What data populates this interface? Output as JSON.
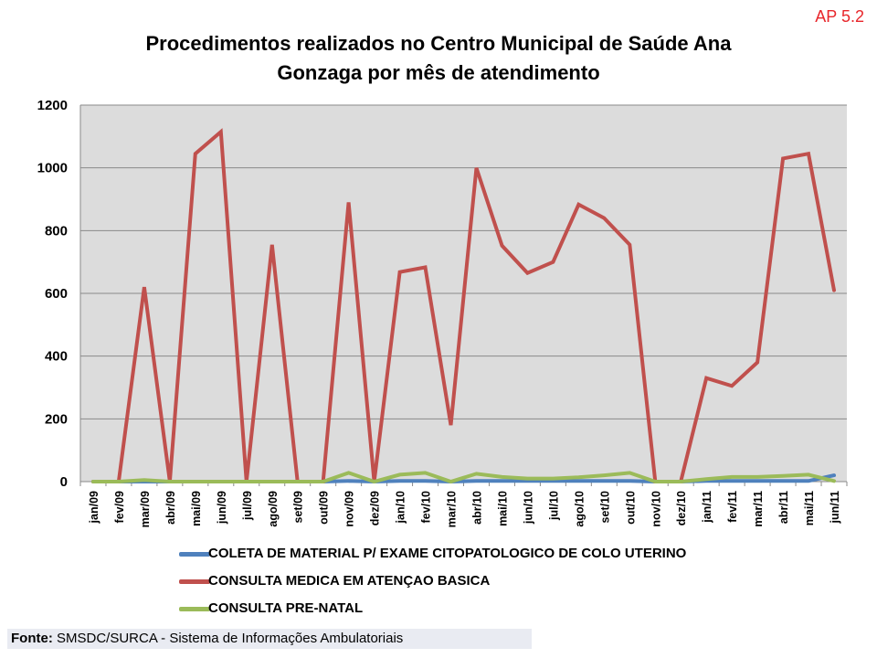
{
  "corner_tag": "AP 5.2",
  "source": {
    "label": "Fonte:",
    "text": "SMSDC/SURCA - Sistema de Informações Ambulatoriais"
  },
  "chart_data": {
    "type": "line",
    "title": "Procedimentos realizados no Centro Municipal de Saúde Ana Gonzaga por mês de atendimento",
    "title_lines": [
      "Procedimentos realizados no Centro Municipal de Saúde Ana",
      "Gonzaga por mês de atendimento"
    ],
    "xlabel": "",
    "ylabel": "",
    "ylim": [
      0,
      1200
    ],
    "yticks": [
      0,
      200,
      400,
      600,
      800,
      1000,
      1200
    ],
    "grid": true,
    "legend_position": "bottom",
    "categories": [
      "jan/09",
      "fev/09",
      "mar/09",
      "abr/09",
      "mai/09",
      "jun/09",
      "jul/09",
      "ago/09",
      "set/09",
      "out/09",
      "nov/09",
      "dez/09",
      "jan/10",
      "fev/10",
      "mar/10",
      "abr/10",
      "mai/10",
      "jun/10",
      "jul/10",
      "ago/10",
      "set/10",
      "out/10",
      "nov/10",
      "dez/10",
      "jan/11",
      "fev/11",
      "mar/11",
      "abr/11",
      "mai/11",
      "jun/11"
    ],
    "series": [
      {
        "name": "COLETA DE MATERIAL P/ EXAME CITOPATOLOGICO DE COLO UTERINO",
        "color": "#4f81bd",
        "values": [
          0,
          0,
          0,
          0,
          0,
          0,
          0,
          0,
          0,
          0,
          2,
          0,
          2,
          2,
          0,
          2,
          2,
          2,
          2,
          2,
          2,
          2,
          0,
          0,
          2,
          2,
          2,
          2,
          2,
          20
        ]
      },
      {
        "name": "CONSULTA MEDICA EM ATENÇAO BASICA",
        "color": "#c0504d",
        "values": [
          0,
          0,
          620,
          0,
          1045,
          1115,
          0,
          755,
          0,
          0,
          890,
          0,
          668,
          683,
          180,
          1000,
          752,
          665,
          700,
          883,
          840,
          755,
          0,
          0,
          330,
          305,
          380,
          1030,
          1045,
          610
        ]
      },
      {
        "name": "CONSULTA PRE-NATAL",
        "color": "#9bbb59",
        "values": [
          0,
          0,
          5,
          0,
          0,
          0,
          0,
          0,
          0,
          0,
          28,
          0,
          22,
          28,
          0,
          25,
          15,
          10,
          10,
          14,
          20,
          28,
          0,
          0,
          8,
          15,
          15,
          18,
          22,
          2
        ]
      }
    ]
  }
}
